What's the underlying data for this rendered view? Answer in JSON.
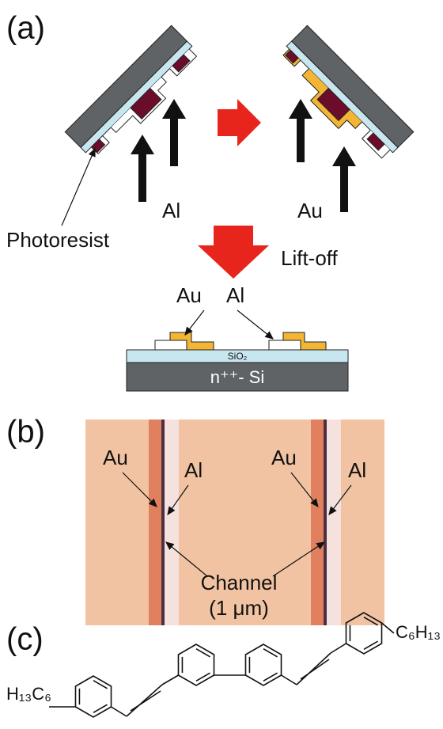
{
  "panel_a": {
    "label": "(a)",
    "photoresist": "Photoresist",
    "metal_left": "Al",
    "metal_right": "Au",
    "lift_off": "Lift-off",
    "cross_section": {
      "au": "Au",
      "al": "Al",
      "oxide": "SiO₂",
      "substrate": "n⁺⁺- Si"
    }
  },
  "panel_b": {
    "label": "(b)",
    "au_left": "Au",
    "al_left": "Al",
    "au_right": "Au",
    "al_right": "Al",
    "channel": "Channel",
    "channel_width": "(1 μm)"
  },
  "panel_c": {
    "label": "(c)",
    "right_chain": "C₆H₁₃",
    "left_chain": "H₁₃C₆"
  }
}
